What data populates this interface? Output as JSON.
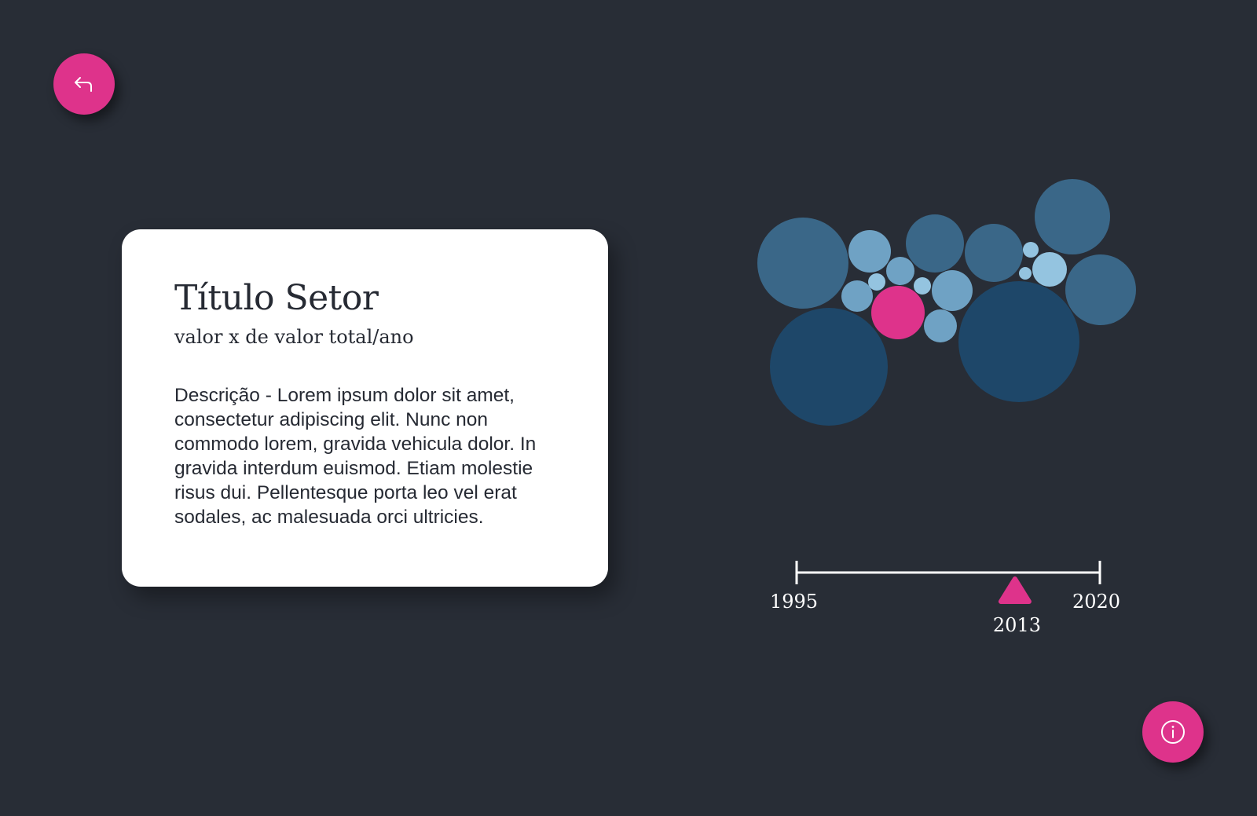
{
  "buttons": {
    "back": {
      "icon": "back-arrow-icon",
      "color": "#de338b"
    },
    "info": {
      "icon": "info-icon",
      "color": "#de338b"
    }
  },
  "card": {
    "title": "Título Setor",
    "subtitle": "valor x de valor total/ano",
    "description": "Descrição - Lorem ipsum dolor sit amet, consectetur adipiscing elit. Nunc non commodo lorem, gravida vehicula dolor. In gravida interdum euismod. Etiam molestie risus dui. Pellentesque porta leo vel erat sodales, ac malesuada orci ultricies."
  },
  "timeline": {
    "start_label": "1995",
    "end_label": "2020",
    "current_label": "2013",
    "start": 1995,
    "end": 2020,
    "current": 2013
  },
  "colors": {
    "background": "#282d36",
    "accent": "#de338b",
    "bubble_dark": "#1e4769",
    "bubble_mid": "#3a6788",
    "bubble_light": "#6fa2c4",
    "bubble_lighter": "#94c4e0"
  },
  "bubbles": [
    {
      "shade": "mid"
    },
    {
      "shade": "dark"
    },
    {
      "shade": "light"
    },
    {
      "shade": "mid"
    },
    {
      "shade": "mid"
    },
    {
      "shade": "mid"
    },
    {
      "shade": "mid"
    },
    {
      "shade": "dark"
    },
    {
      "shade": "light"
    },
    {
      "shade": "light"
    },
    {
      "shade": "lighter"
    },
    {
      "shade": "lighter"
    },
    {
      "shade": "highlight"
    },
    {
      "shade": "light"
    },
    {
      "shade": "light"
    },
    {
      "shade": "lighter"
    },
    {
      "shade": "lighter"
    },
    {
      "shade": "lighter"
    }
  ]
}
